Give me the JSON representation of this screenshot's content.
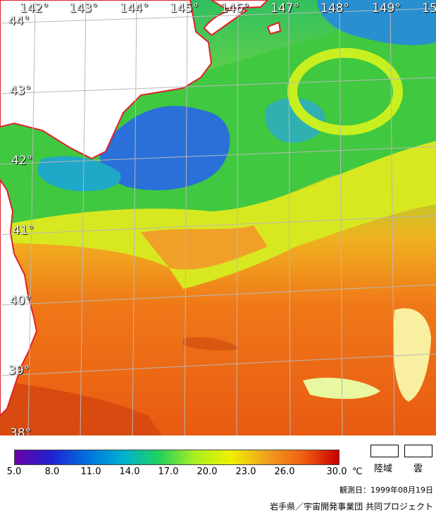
{
  "map": {
    "longitude_labels": [
      "142°",
      "143°",
      "144°",
      "145°",
      "146°",
      "147°",
      "148°",
      "149°",
      "15"
    ],
    "latitude_labels": [
      "44°",
      "43°",
      "42°",
      "41°",
      "40°",
      "39°",
      "38°"
    ],
    "land_color": "#ffffff",
    "coastline_color": "#e0202a",
    "grid_color": "#b0b0b0"
  },
  "legend": {
    "ticks": [
      "5.0",
      "8.0",
      "11.0",
      "14.0",
      "17.0",
      "20.0",
      "23.0",
      "26.0",
      "30.0"
    ],
    "unit": "℃",
    "gradient_colors": [
      "#6a00a8",
      "#2020d0",
      "#0070e0",
      "#00b0d0",
      "#20d060",
      "#a8f020",
      "#f0f000",
      "#f0a020",
      "#f06010",
      "#c80000"
    ],
    "land_label": "陸域",
    "cloud_label": "雲"
  },
  "footer": {
    "observation_date": "観測日：1999年08月19日",
    "credit": "岩手県／宇宙開発事業団 共同プロジェクト"
  }
}
